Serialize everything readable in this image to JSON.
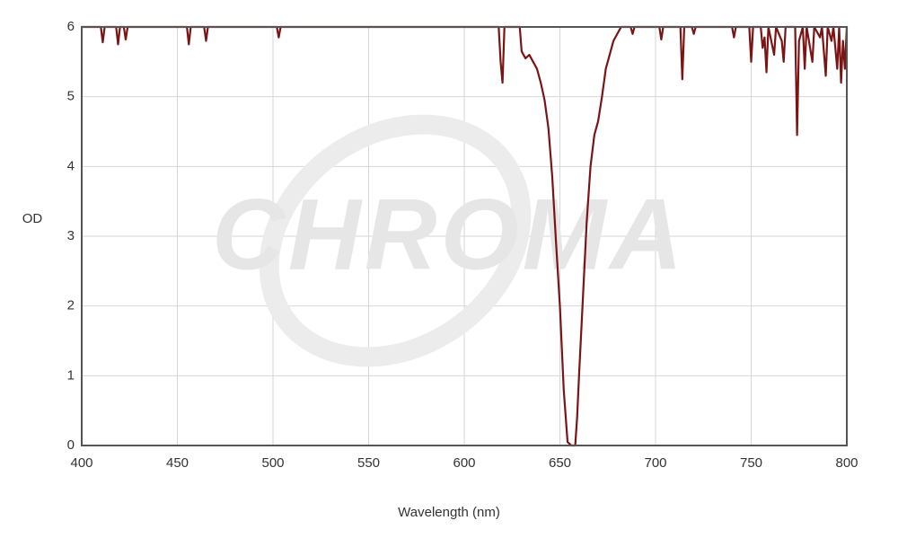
{
  "chart_data": {
    "type": "line",
    "x_label": "Wavelength (nm)",
    "y_label": "OD",
    "watermark": "CHROMA",
    "x": [
      400,
      410,
      411,
      412,
      418,
      419,
      420,
      422,
      423,
      424,
      455,
      456,
      457,
      464,
      465,
      466,
      502,
      503,
      504,
      618,
      619,
      620,
      621,
      629,
      630,
      632,
      634,
      636,
      638,
      640,
      642,
      644,
      646,
      648,
      650,
      652,
      654,
      656,
      658,
      659,
      660,
      662,
      664,
      666,
      668,
      670,
      672,
      674,
      676,
      678,
      680,
      682,
      687,
      688,
      689,
      702,
      703,
      704,
      713,
      714,
      715,
      719,
      720,
      721,
      740,
      741,
      742,
      749,
      750,
      751,
      755,
      756,
      757,
      758,
      759,
      762,
      763,
      766,
      767,
      768,
      773,
      774,
      775,
      777,
      778,
      779,
      782,
      783,
      786,
      787,
      789,
      790,
      792,
      793,
      795,
      796,
      797,
      798,
      799,
      800
    ],
    "series": [
      {
        "name": "OD",
        "color": "#7b1414",
        "values": [
          6,
          6,
          5.78,
          6,
          6,
          5.75,
          6,
          6,
          5.82,
          6,
          6,
          5.75,
          6,
          6,
          5.8,
          6,
          6,
          5.85,
          6,
          6,
          5.5,
          5.2,
          6,
          6,
          5.65,
          5.55,
          5.6,
          5.5,
          5.4,
          5.2,
          4.95,
          4.55,
          3.85,
          2.9,
          2.0,
          0.8,
          0.05,
          0,
          0,
          0.4,
          1.0,
          2.1,
          3.2,
          4.0,
          4.45,
          4.65,
          5.0,
          5.4,
          5.6,
          5.8,
          5.9,
          6,
          6,
          5.9,
          6,
          6,
          5.82,
          6,
          6,
          5.25,
          6,
          6,
          5.9,
          6,
          6,
          5.85,
          6,
          6,
          5.5,
          6,
          6,
          5.7,
          5.85,
          5.35,
          6,
          5.6,
          6,
          5.8,
          5.5,
          6,
          6,
          4.45,
          5.8,
          6,
          5.4,
          6,
          5.5,
          6,
          5.85,
          6,
          5.3,
          6,
          5.8,
          6,
          5.4,
          6,
          5.2,
          5.8,
          5.4,
          6
        ]
      }
    ],
    "xlim": [
      400,
      800
    ],
    "xticks": [
      400,
      450,
      500,
      550,
      600,
      650,
      700,
      750,
      800
    ],
    "ylim": [
      0,
      6
    ],
    "yticks": [
      0,
      1,
      2,
      3,
      4,
      5,
      6
    ],
    "grid": true
  }
}
